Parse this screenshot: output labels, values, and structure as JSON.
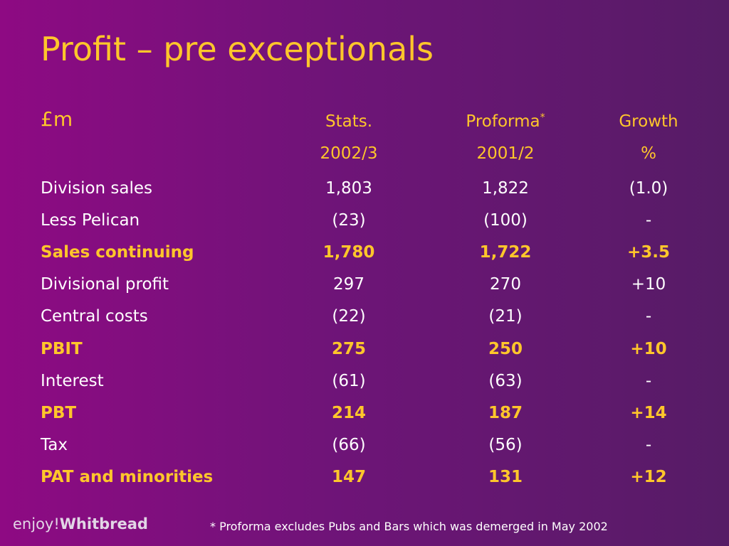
{
  "slide": {
    "title": "Profit – pre exceptionals",
    "unit": "£m",
    "footnote": "* Proforma excludes Pubs and Bars which was demerged in May 2002",
    "logo": {
      "part1": "enjoy!",
      "part2": "Whitbread"
    },
    "colors": {
      "accent": "#ffc62b",
      "text": "#ffffff",
      "background_left": "#8e0a83",
      "background_right": "#561c66"
    }
  },
  "table": {
    "headers": [
      {
        "line1": "Stats.",
        "line2": "2002/3",
        "marker": ""
      },
      {
        "line1": "Proforma",
        "line2": "2001/2",
        "marker": "*"
      },
      {
        "line1": "Growth",
        "line2": "%",
        "marker": ""
      }
    ],
    "rows": [
      {
        "label": "Division sales",
        "stats": "1,803",
        "proforma": "1,822",
        "growth": "(1.0)",
        "highlight": false
      },
      {
        "label": "Less Pelican",
        "stats": "(23)",
        "proforma": "(100)",
        "growth": "-",
        "highlight": false
      },
      {
        "label": "Sales continuing",
        "stats": "1,780",
        "proforma": "1,722",
        "growth": "+3.5",
        "highlight": true
      },
      {
        "label": "Divisional profit",
        "stats": "297",
        "proforma": "270",
        "growth": "+10",
        "highlight": false
      },
      {
        "label": "Central costs",
        "stats": "(22)",
        "proforma": "(21)",
        "growth": "-",
        "highlight": false
      },
      {
        "label": "PBIT",
        "stats": "275",
        "proforma": "250",
        "growth": "+10",
        "highlight": true
      },
      {
        "label": "Interest",
        "stats": "(61)",
        "proforma": "(63)",
        "growth": "-",
        "highlight": false
      },
      {
        "label": "PBT",
        "stats": "214",
        "proforma": "187",
        "growth": "+14",
        "highlight": true
      },
      {
        "label": "Tax",
        "stats": "(66)",
        "proforma": "(56)",
        "growth": "-",
        "highlight": false
      },
      {
        "label": "PAT and minorities",
        "stats": "147",
        "proforma": "131",
        "growth": "+12",
        "highlight": true
      }
    ]
  }
}
